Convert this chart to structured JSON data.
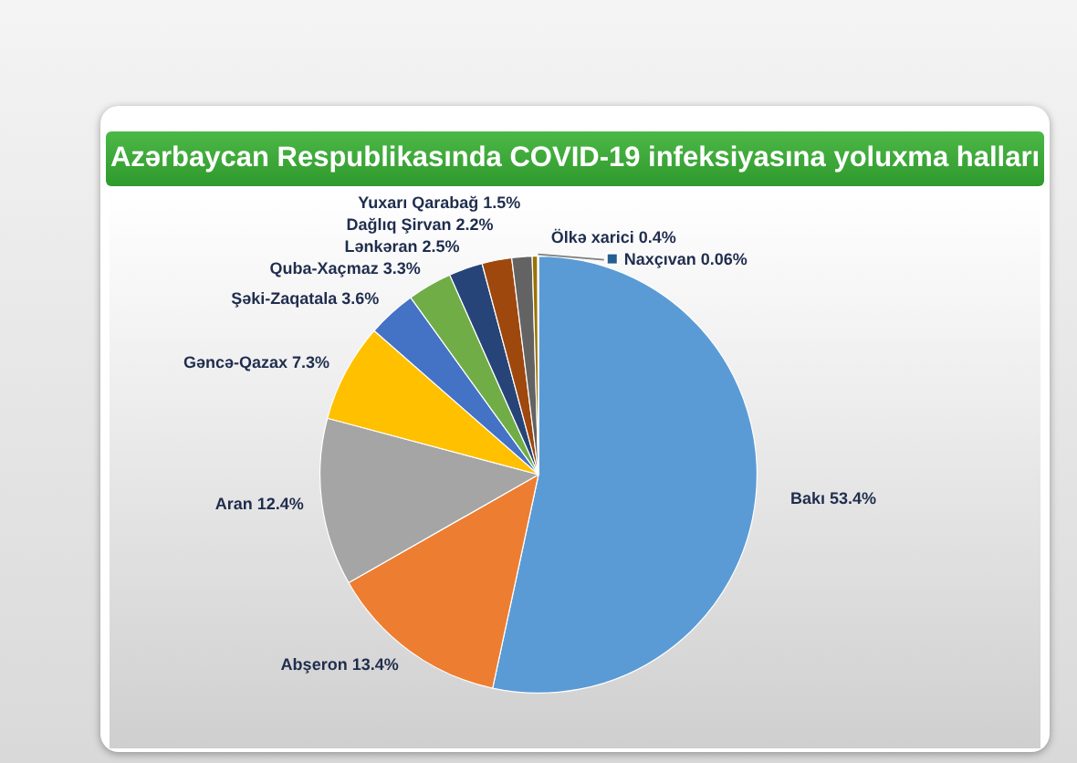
{
  "chart_data": {
    "type": "pie",
    "title": "Azərbaycan Respublikasında COVID-19 infeksiyasına yoluxma halları",
    "categories": [
      "Bakı",
      "Abşeron",
      "Aran",
      "Gəncə-Qazax",
      "Şəki-Zaqatala",
      "Quba-Xaçmaz",
      "Lənkəran",
      "Dağlıq Şirvan",
      "Yuxarı Qarabağ",
      "Ölkə xarici",
      "Naxçıvan"
    ],
    "values": [
      53.4,
      13.4,
      12.4,
      7.3,
      3.6,
      3.3,
      2.5,
      2.2,
      1.5,
      0.4,
      0.06
    ],
    "colors": [
      "#5b9bd5",
      "#ed7d31",
      "#a5a5a5",
      "#ffc000",
      "#4472c4",
      "#70ad47",
      "#264478",
      "#9e480e",
      "#636363",
      "#997300",
      "#255e91"
    ],
    "value_labels": [
      "53.4%",
      "13.4%",
      "12.4%",
      "7.3%",
      "3.6%",
      "3.3%",
      "2.5%",
      "2.2%",
      "1.5%",
      "0.4%",
      "0.06%"
    ]
  }
}
